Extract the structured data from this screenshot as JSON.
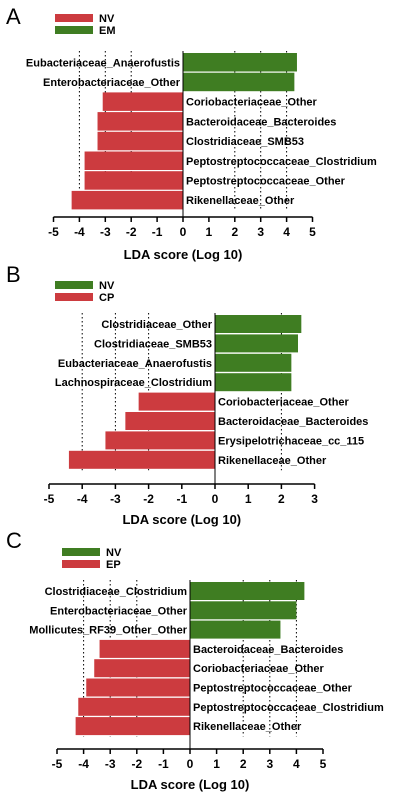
{
  "colors": {
    "green": "#3f7d22",
    "red": "#cc3b3f",
    "axis": "#000000"
  },
  "chart_data": [
    {
      "type": "bar",
      "orientation": "horizontal",
      "panel_letter": "A",
      "xlabel": "LDA score (Log 10)",
      "xlim": [
        -5,
        5
      ],
      "xticks": [
        -5,
        -4,
        -3,
        -2,
        -1,
        0,
        1,
        2,
        3,
        4,
        5
      ],
      "dotted_gridlines": [
        -4,
        -3,
        -2,
        2,
        3,
        4
      ],
      "legend": [
        {
          "name": "NV",
          "color": "#cc3b3f"
        },
        {
          "name": "EM",
          "color": "#3f7d22"
        }
      ],
      "legend_placement": "top-left",
      "categories": [
        "Eubacteriaceae_Anaerofustis",
        "Enterobacteriaceae_Other",
        "Coriobacteriaceae_Other",
        "Bacteroidaceae_Bacteroides",
        "Clostridiaceae_SMB53",
        "Peptostreptococcaceae_Clostridium",
        "Peptostreptococcaceae_Other",
        "Rikenellaceae_Other"
      ],
      "values": [
        4.4,
        4.3,
        -3.1,
        -3.3,
        -3.3,
        -3.8,
        -3.8,
        -4.3
      ],
      "groups": [
        "EM",
        "EM",
        "NV",
        "NV",
        "NV",
        "NV",
        "NV",
        "NV"
      ]
    },
    {
      "type": "bar",
      "orientation": "horizontal",
      "panel_letter": "B",
      "xlabel": "LDA score (Log 10)",
      "xlim": [
        -5,
        3
      ],
      "xticks": [
        -5,
        -4,
        -3,
        -2,
        -1,
        0,
        1,
        2,
        3
      ],
      "dotted_gridlines": [
        -4,
        -3,
        -2,
        2
      ],
      "legend": [
        {
          "name": "NV",
          "color": "#3f7d22"
        },
        {
          "name": "CP",
          "color": "#cc3b3f"
        }
      ],
      "legend_placement": "top-left",
      "categories": [
        "Clostridiaceae_Other",
        "Clostridiaceae_SMB53",
        "Eubacteriaceae_Anaerofustis",
        "Lachnospiraceae_Clostridium",
        "Coriobacteriaceae_Other",
        "Bacteroidaceae_Bacteroides",
        "Erysipelotrichaceae_cc_115",
        "Rikenellaceae_Other"
      ],
      "values": [
        2.6,
        2.5,
        2.3,
        2.3,
        -2.3,
        -2.7,
        -3.3,
        -4.4
      ],
      "groups": [
        "NV",
        "NV",
        "NV",
        "NV",
        "CP",
        "CP",
        "CP",
        "CP"
      ]
    },
    {
      "type": "bar",
      "orientation": "horizontal",
      "panel_letter": "C",
      "xlabel": "LDA score (Log 10)",
      "xlim": [
        -5,
        5
      ],
      "xticks": [
        -5,
        -4,
        -3,
        -2,
        -1,
        0,
        1,
        2,
        3,
        4,
        5
      ],
      "dotted_gridlines": [
        -4,
        -3,
        -2,
        2,
        3,
        4
      ],
      "legend": [
        {
          "name": "NV",
          "color": "#3f7d22"
        },
        {
          "name": "EP",
          "color": "#cc3b3f"
        }
      ],
      "legend_placement": "top-left",
      "categories": [
        "Clostridiaceae_Clostridium",
        "Enterobacteriaceae_Other",
        "Mollicutes_RF39_Other_Other",
        "Bacteroidaceae_Bacteroides",
        "Coriobacteriaceae_Other",
        "Peptostreptococcaceae_Other",
        "Peptostreptococcaceae_Clostridium",
        "Rikenellaceae_Other"
      ],
      "values": [
        4.3,
        4.0,
        3.4,
        -3.4,
        -3.6,
        -3.9,
        -4.2,
        -4.3
      ],
      "groups": [
        "NV",
        "NV",
        "NV",
        "EP",
        "EP",
        "EP",
        "EP",
        "EP"
      ]
    }
  ]
}
